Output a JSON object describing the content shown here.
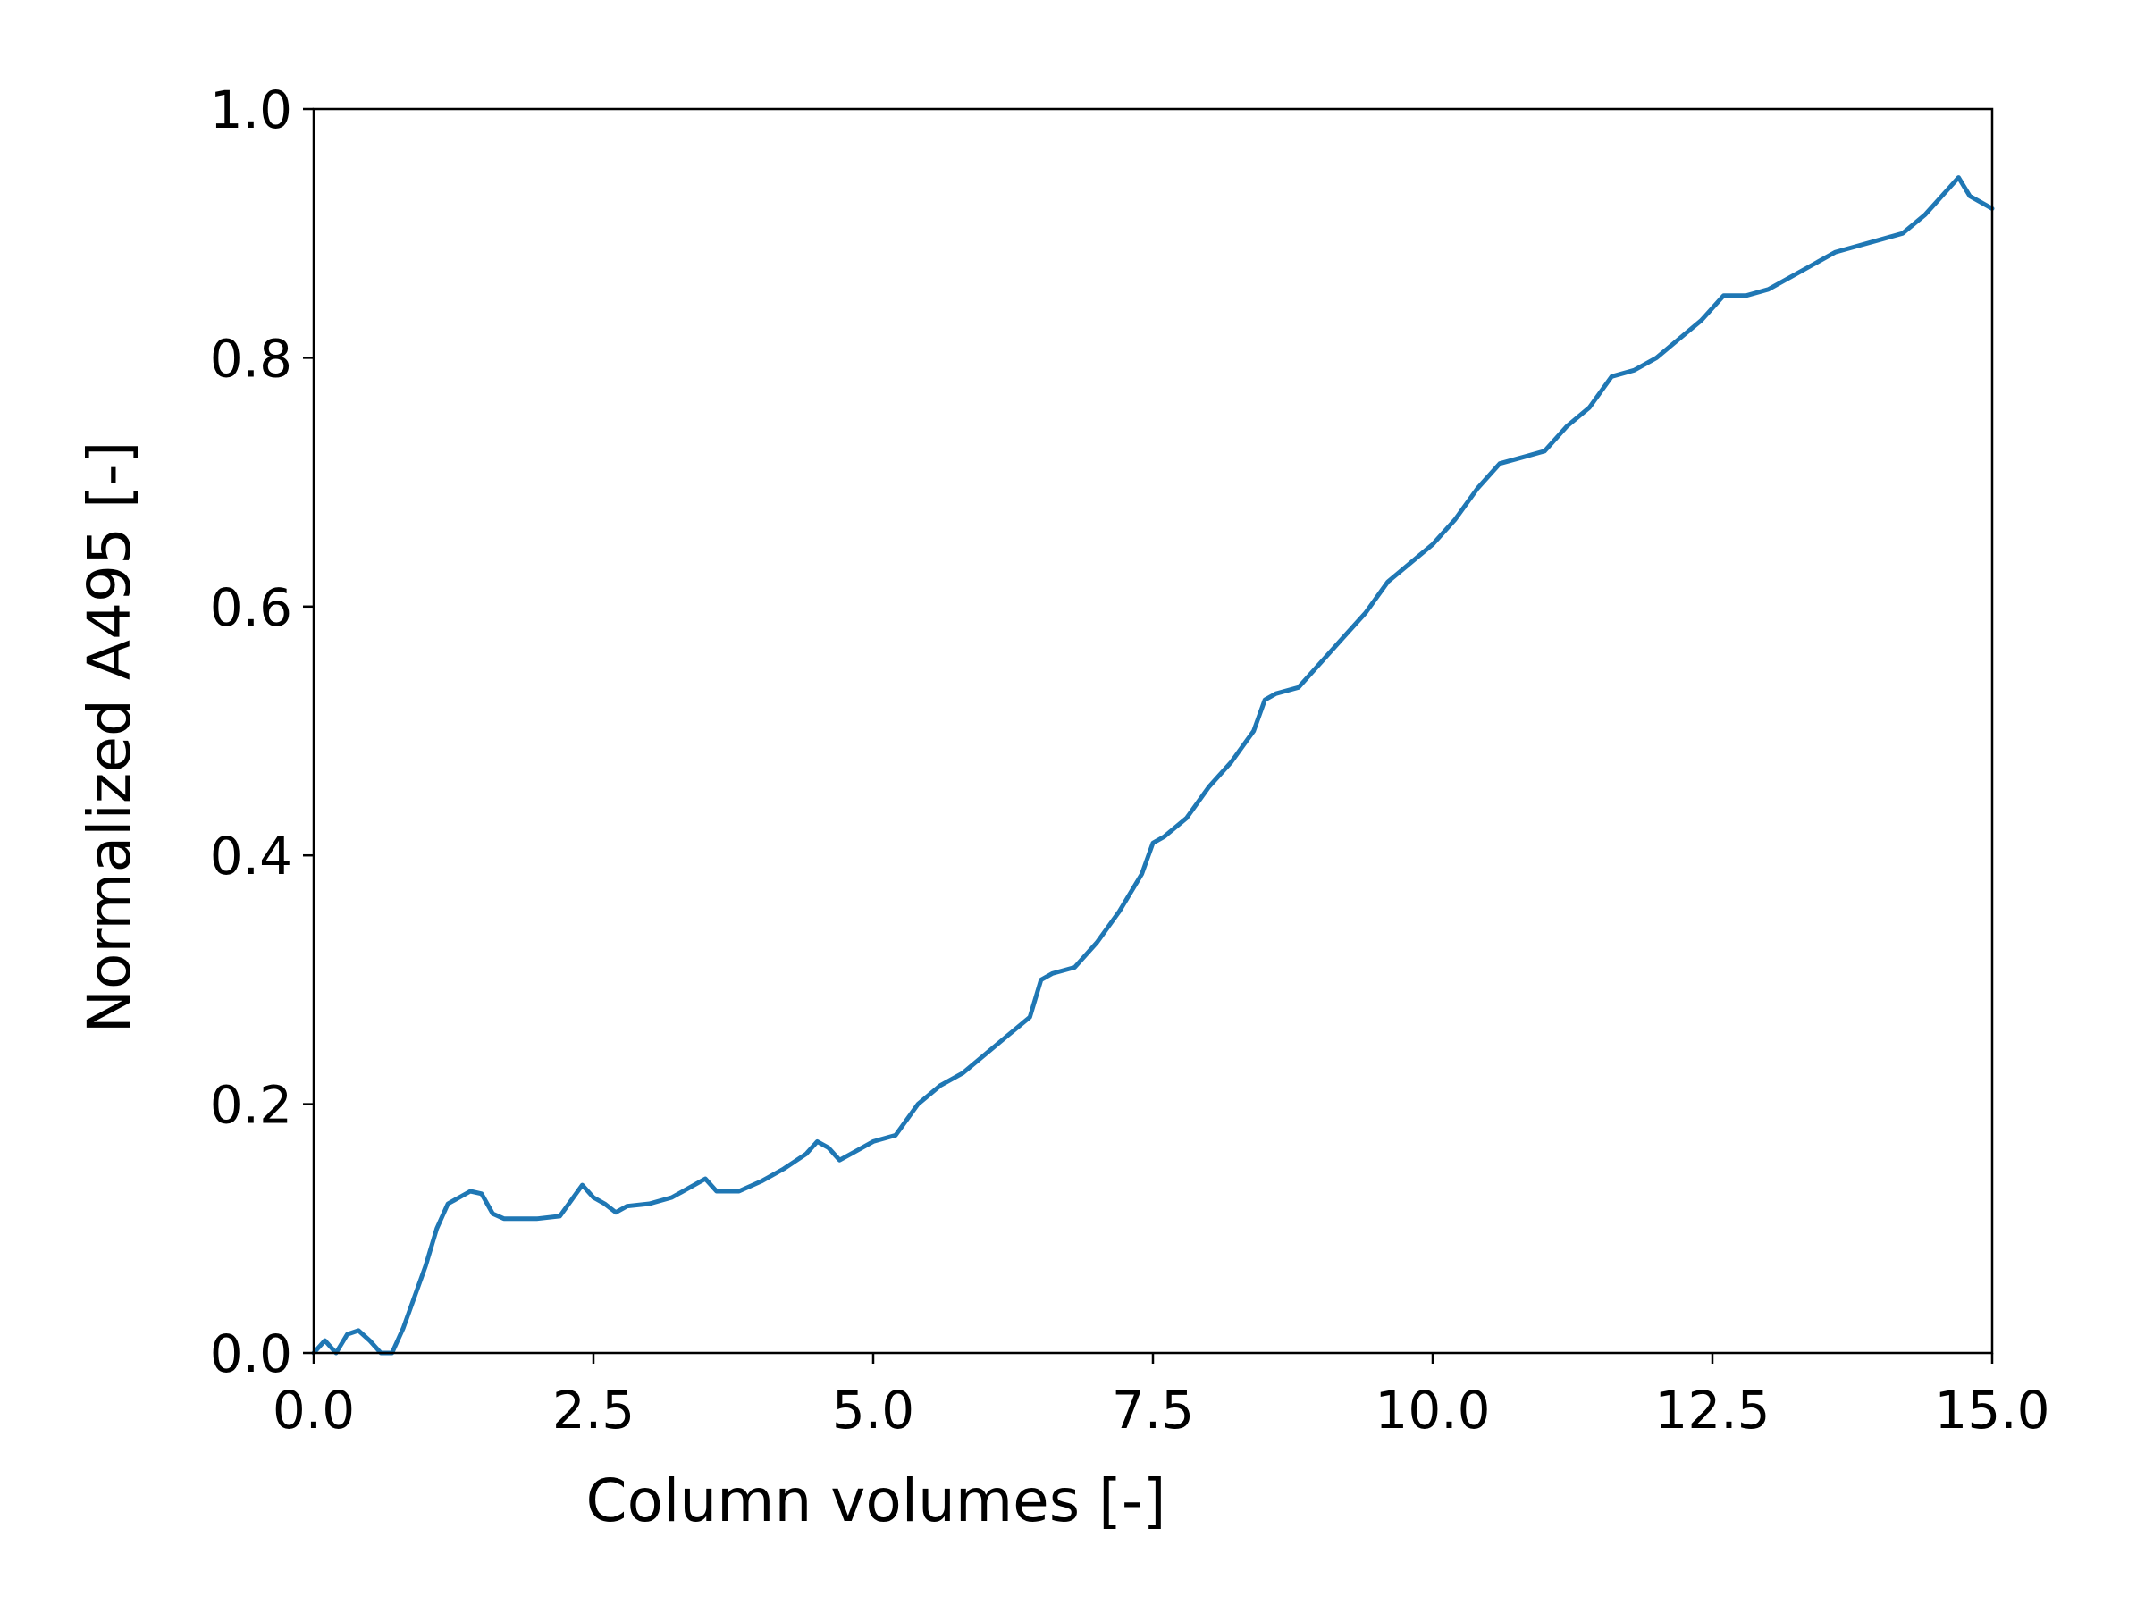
{
  "chart_data": {
    "type": "line",
    "title": "",
    "xlabel": "Column volumes [-]",
    "ylabel": "Normalized A495 [-]",
    "xlim": [
      0.0,
      15.0
    ],
    "ylim": [
      0.0,
      1.0
    ],
    "xticks": [
      "0.0",
      "2.5",
      "5.0",
      "7.5",
      "10.0",
      "12.5",
      "15.0"
    ],
    "yticks": [
      "0.0",
      "0.2",
      "0.4",
      "0.6",
      "0.8",
      "1.0"
    ],
    "grid": false,
    "legend": "none",
    "series": [
      {
        "color": "#1f77b4",
        "x": [
          0.0,
          0.1,
          0.2,
          0.3,
          0.4,
          0.5,
          0.6,
          0.7,
          0.8,
          0.9,
          1.0,
          1.1,
          1.2,
          1.3,
          1.4,
          1.5,
          1.6,
          1.7,
          1.8,
          2.0,
          2.2,
          2.4,
          2.5,
          2.6,
          2.7,
          2.8,
          3.0,
          3.2,
          3.4,
          3.5,
          3.6,
          3.8,
          4.0,
          4.2,
          4.4,
          4.5,
          4.6,
          4.7,
          4.8,
          5.0,
          5.2,
          5.4,
          5.6,
          5.8,
          6.0,
          6.2,
          6.4,
          6.5,
          6.6,
          6.8,
          7.0,
          7.2,
          7.4,
          7.5,
          7.6,
          7.8,
          8.0,
          8.2,
          8.4,
          8.5,
          8.6,
          8.8,
          9.0,
          9.2,
          9.4,
          9.6,
          9.8,
          10.0,
          10.2,
          10.4,
          10.6,
          10.8,
          11.0,
          11.2,
          11.4,
          11.6,
          11.8,
          12.0,
          12.2,
          12.4,
          12.6,
          12.8,
          13.0,
          13.2,
          13.4,
          13.6,
          13.8,
          14.0,
          14.2,
          14.4,
          14.5,
          14.6,
          14.7,
          14.8,
          14.9,
          15.0
        ],
        "y": [
          0.0,
          0.01,
          0.0,
          0.015,
          0.018,
          0.01,
          0.0,
          0.0,
          0.02,
          0.045,
          0.07,
          0.1,
          0.12,
          0.125,
          0.13,
          0.128,
          0.112,
          0.108,
          0.108,
          0.108,
          0.11,
          0.135,
          0.125,
          0.12,
          0.113,
          0.118,
          0.12,
          0.125,
          0.135,
          0.14,
          0.13,
          0.13,
          0.138,
          0.148,
          0.16,
          0.17,
          0.165,
          0.155,
          0.16,
          0.17,
          0.175,
          0.2,
          0.215,
          0.225,
          0.24,
          0.255,
          0.27,
          0.3,
          0.305,
          0.31,
          0.33,
          0.355,
          0.385,
          0.41,
          0.415,
          0.43,
          0.455,
          0.475,
          0.5,
          0.525,
          0.53,
          0.535,
          0.555,
          0.575,
          0.595,
          0.62,
          0.635,
          0.65,
          0.67,
          0.695,
          0.715,
          0.72,
          0.725,
          0.745,
          0.76,
          0.785,
          0.79,
          0.8,
          0.815,
          0.83,
          0.85,
          0.85,
          0.855,
          0.865,
          0.875,
          0.885,
          0.89,
          0.895,
          0.9,
          0.915,
          0.925,
          0.935,
          0.945,
          0.93,
          0.925,
          0.92
        ]
      }
    ]
  }
}
